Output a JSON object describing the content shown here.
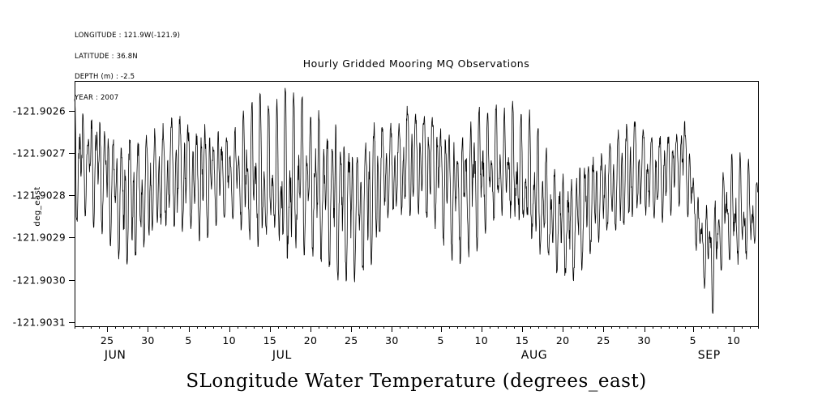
{
  "meta": {
    "lines": [
      "LONGITUDE : 121.9W(-121.9)",
      "LATITUDE : 36.8N",
      "DEPTH (m) : -2.5",
      "YEAR : 2007"
    ]
  },
  "chart_data": {
    "type": "line",
    "title": "Hourly Gridded Mooring MQ Observations",
    "bottom_title": "SLongitude Water Temperature (degrees_east)",
    "y_axis_side_label": "deg_east",
    "units": "degrees_east",
    "sampling": "hourly",
    "line_color": "#000000",
    "ylim": [
      -121.90311,
      -121.90253
    ],
    "xlim_days": [
      0,
      84
    ],
    "y_ticks": [
      {
        "v": -121.9026,
        "label": "-121.9026"
      },
      {
        "v": -121.9027,
        "label": "-121.9027"
      },
      {
        "v": -121.9028,
        "label": "-121.9028"
      },
      {
        "v": -121.9029,
        "label": "-121.9029"
      },
      {
        "v": -121.903,
        "label": "-121.9030"
      },
      {
        "v": -121.9031,
        "label": "-121.9031"
      }
    ],
    "x_ticks": [
      {
        "day": 4,
        "label": "25"
      },
      {
        "day": 9,
        "label": "30"
      },
      {
        "day": 14,
        "label": "5"
      },
      {
        "day": 19,
        "label": "10"
      },
      {
        "day": 24,
        "label": "15"
      },
      {
        "day": 29,
        "label": "20"
      },
      {
        "day": 34,
        "label": "25"
      },
      {
        "day": 39,
        "label": "30"
      },
      {
        "day": 45,
        "label": "5"
      },
      {
        "day": 50,
        "label": "10"
      },
      {
        "day": 55,
        "label": "15"
      },
      {
        "day": 60,
        "label": "20"
      },
      {
        "day": 65,
        "label": "25"
      },
      {
        "day": 70,
        "label": "30"
      },
      {
        "day": 76,
        "label": "5"
      },
      {
        "day": 81,
        "label": "10"
      }
    ],
    "months": [
      {
        "label": "JUN",
        "from": 0,
        "to": 10
      },
      {
        "label": "JUL",
        "from": 10,
        "to": 41
      },
      {
        "label": "AUG",
        "from": 41,
        "to": 72
      },
      {
        "label": "SEP",
        "from": 72,
        "to": 84
      }
    ],
    "envelope": [
      [
        0,
        -121.90256,
        -121.90288
      ],
      [
        3,
        -121.90255,
        -121.90292
      ],
      [
        6,
        -121.90262,
        -121.903
      ],
      [
        9,
        -121.90263,
        -121.90296
      ],
      [
        12,
        -121.90258,
        -121.9029
      ],
      [
        15,
        -121.9026,
        -121.90293
      ],
      [
        19,
        -121.90264,
        -121.90286
      ],
      [
        22,
        -121.90256,
        -121.90294
      ],
      [
        25,
        -121.90255,
        -121.903
      ],
      [
        28,
        -121.90256,
        -121.90296
      ],
      [
        31,
        -121.9026,
        -121.90299
      ],
      [
        35,
        -121.90264,
        -121.90304
      ],
      [
        38,
        -121.90259,
        -121.90291
      ],
      [
        41,
        -121.90257,
        -121.90288
      ],
      [
        44,
        -121.90255,
        -121.9029
      ],
      [
        47,
        -121.90261,
        -121.903
      ],
      [
        50,
        -121.90258,
        -121.90292
      ],
      [
        53,
        -121.90257,
        -121.90288
      ],
      [
        56,
        -121.90259,
        -121.90295
      ],
      [
        59,
        -121.90272,
        -121.90299
      ],
      [
        61,
        -121.90275,
        -121.90301
      ],
      [
        63,
        -121.90269,
        -121.90296
      ],
      [
        66,
        -121.90264,
        -121.90292
      ],
      [
        69,
        -121.90259,
        -121.90288
      ],
      [
        72,
        -121.90263,
        -121.9029
      ],
      [
        75,
        -121.90258,
        -121.90284
      ],
      [
        77,
        -121.90282,
        -121.903
      ],
      [
        78.6,
        -121.90279,
        -121.9031
      ],
      [
        80,
        -121.90272,
        -121.90294
      ],
      [
        82,
        -121.90268,
        -121.90301
      ],
      [
        84,
        -121.90277,
        -121.90292
      ]
    ],
    "seed": 20070621
  }
}
